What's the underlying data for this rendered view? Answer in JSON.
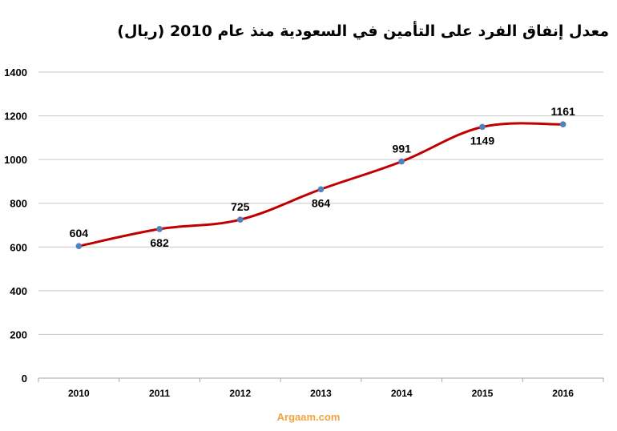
{
  "colors": {
    "line": "#C00000",
    "marker": "#4F81BD",
    "grid": "#C8C8C8",
    "source": "#F4A341"
  },
  "source": "Argaam.com",
  "chart_data": {
    "type": "line",
    "title": "معدل إنفاق الفرد على التأمين في السعودية منذ عام 2010 (ريال)",
    "xlabel": "",
    "ylabel": "",
    "x": [
      "2010",
      "2011",
      "2012",
      "2013",
      "2014",
      "2015",
      "2016"
    ],
    "values": [
      604,
      682,
      725,
      864,
      991,
      1149,
      1161
    ],
    "data_labels": [
      "604",
      "682",
      "725",
      "864",
      "991",
      "1149",
      "1161"
    ],
    "label_positions": [
      "above",
      "below",
      "above",
      "below",
      "above",
      "below",
      "above"
    ],
    "ylim": [
      0,
      1400
    ],
    "yticks": [
      0,
      200,
      400,
      600,
      800,
      1000,
      1200,
      1400
    ],
    "grid": true,
    "legend": "none",
    "smooth": true
  }
}
